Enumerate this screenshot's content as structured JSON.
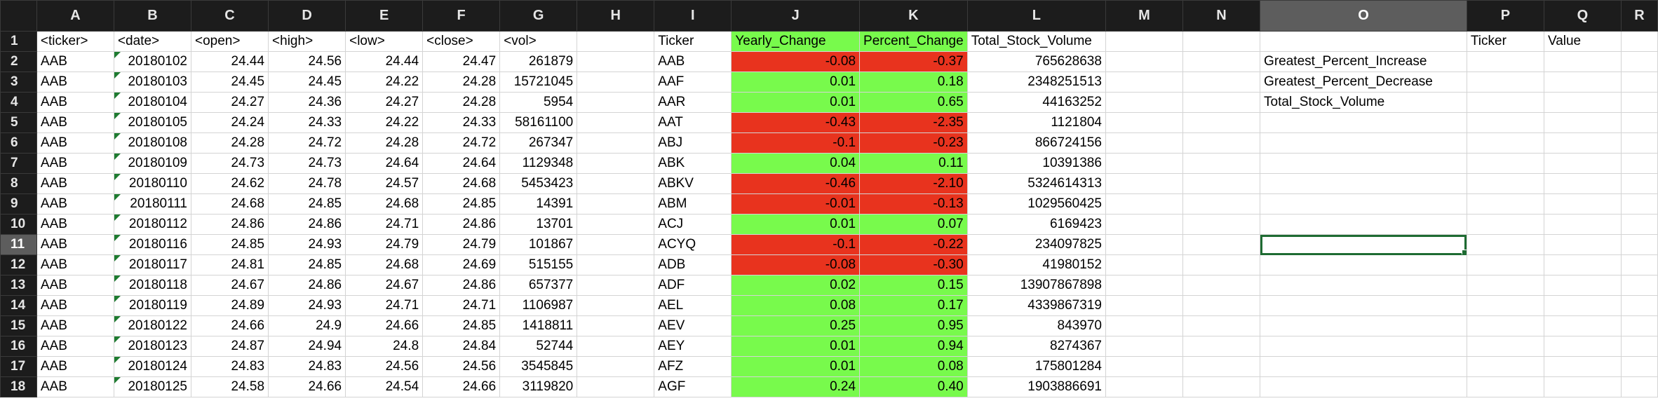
{
  "columns": [
    "A",
    "B",
    "C",
    "D",
    "E",
    "F",
    "G",
    "H",
    "I",
    "J",
    "K",
    "L",
    "M",
    "N",
    "O",
    "P",
    "Q",
    "R"
  ],
  "selected": {
    "column": "O",
    "row": "11"
  },
  "colors": {
    "positive": "#78fa4c",
    "negative": "#e8331e",
    "header_bg": "#1c1c1c"
  },
  "header_row": {
    "row": "1",
    "A": "<ticker>",
    "B": "<date>",
    "C": "<open>",
    "D": "<high>",
    "E": "<low>",
    "F": "<close>",
    "G": "<vol>",
    "I": "Ticker",
    "J": "Yearly_Change",
    "K": "Percent_Change",
    "L": "Total_Stock_Volume",
    "P": "Ticker",
    "Q": "Value"
  },
  "rows": [
    {
      "row": "2",
      "A": "AAB",
      "B": "20180102",
      "C": "24.44",
      "D": "24.56",
      "E": "24.44",
      "F": "24.47",
      "G": "261879",
      "I": "AAB",
      "J": "-0.08",
      "K": "-0.37",
      "L": "765628638",
      "O": "Greatest_Percent_Increase"
    },
    {
      "row": "3",
      "A": "AAB",
      "B": "20180103",
      "C": "24.45",
      "D": "24.45",
      "E": "24.22",
      "F": "24.28",
      "G": "15721045",
      "I": "AAF",
      "J": "0.01",
      "K": "0.18",
      "L": "2348251513",
      "O": "Greatest_Percent_Decrease"
    },
    {
      "row": "4",
      "A": "AAB",
      "B": "20180104",
      "C": "24.27",
      "D": "24.36",
      "E": "24.27",
      "F": "24.28",
      "G": "5954",
      "I": "AAR",
      "J": "0.01",
      "K": "0.65",
      "L": "44163252",
      "O": "Total_Stock_Volume"
    },
    {
      "row": "5",
      "A": "AAB",
      "B": "20180105",
      "C": "24.24",
      "D": "24.33",
      "E": "24.22",
      "F": "24.33",
      "G": "58161100",
      "I": "AAT",
      "J": "-0.43",
      "K": "-2.35",
      "L": "1121804",
      "O": ""
    },
    {
      "row": "6",
      "A": "AAB",
      "B": "20180108",
      "C": "24.28",
      "D": "24.72",
      "E": "24.28",
      "F": "24.72",
      "G": "267347",
      "I": "ABJ",
      "J": "-0.1",
      "K": "-0.23",
      "L": "866724156",
      "O": ""
    },
    {
      "row": "7",
      "A": "AAB",
      "B": "20180109",
      "C": "24.73",
      "D": "24.73",
      "E": "24.64",
      "F": "24.64",
      "G": "1129348",
      "I": "ABK",
      "J": "0.04",
      "K": "0.11",
      "L": "10391386",
      "O": ""
    },
    {
      "row": "8",
      "A": "AAB",
      "B": "20180110",
      "C": "24.62",
      "D": "24.78",
      "E": "24.57",
      "F": "24.68",
      "G": "5453423",
      "I": "ABKV",
      "J": "-0.46",
      "K": "-2.10",
      "L": "5324614313",
      "O": ""
    },
    {
      "row": "9",
      "A": "AAB",
      "B": "20180111",
      "C": "24.68",
      "D": "24.85",
      "E": "24.68",
      "F": "24.85",
      "G": "14391",
      "I": "ABM",
      "J": "-0.01",
      "K": "-0.13",
      "L": "1029560425",
      "O": ""
    },
    {
      "row": "10",
      "A": "AAB",
      "B": "20180112",
      "C": "24.86",
      "D": "24.86",
      "E": "24.71",
      "F": "24.86",
      "G": "13701",
      "I": "ACJ",
      "J": "0.01",
      "K": "0.07",
      "L": "6169423",
      "O": ""
    },
    {
      "row": "11",
      "A": "AAB",
      "B": "20180116",
      "C": "24.85",
      "D": "24.93",
      "E": "24.79",
      "F": "24.79",
      "G": "101867",
      "I": "ACYQ",
      "J": "-0.1",
      "K": "-0.22",
      "L": "234097825",
      "O": ""
    },
    {
      "row": "12",
      "A": "AAB",
      "B": "20180117",
      "C": "24.81",
      "D": "24.85",
      "E": "24.68",
      "F": "24.69",
      "G": "515155",
      "I": "ADB",
      "J": "-0.08",
      "K": "-0.30",
      "L": "41980152",
      "O": ""
    },
    {
      "row": "13",
      "A": "AAB",
      "B": "20180118",
      "C": "24.67",
      "D": "24.86",
      "E": "24.67",
      "F": "24.86",
      "G": "657377",
      "I": "ADF",
      "J": "0.02",
      "K": "0.15",
      "L": "13907867898",
      "O": ""
    },
    {
      "row": "14",
      "A": "AAB",
      "B": "20180119",
      "C": "24.89",
      "D": "24.93",
      "E": "24.71",
      "F": "24.71",
      "G": "1106987",
      "I": "AEL",
      "J": "0.08",
      "K": "0.17",
      "L": "4339867319",
      "O": ""
    },
    {
      "row": "15",
      "A": "AAB",
      "B": "20180122",
      "C": "24.66",
      "D": "24.9",
      "E": "24.66",
      "F": "24.85",
      "G": "1418811",
      "I": "AEV",
      "J": "0.25",
      "K": "0.95",
      "L": "843970",
      "O": ""
    },
    {
      "row": "16",
      "A": "AAB",
      "B": "20180123",
      "C": "24.87",
      "D": "24.94",
      "E": "24.8",
      "F": "24.84",
      "G": "52744",
      "I": "AEY",
      "J": "0.01",
      "K": "0.94",
      "L": "8274367",
      "O": ""
    },
    {
      "row": "17",
      "A": "AAB",
      "B": "20180124",
      "C": "24.83",
      "D": "24.83",
      "E": "24.56",
      "F": "24.56",
      "G": "3545845",
      "I": "AFZ",
      "J": "0.01",
      "K": "0.08",
      "L": "175801284",
      "O": ""
    },
    {
      "row": "18",
      "A": "AAB",
      "B": "20180125",
      "C": "24.58",
      "D": "24.66",
      "E": "24.54",
      "F": "24.66",
      "G": "3119820",
      "I": "AGF",
      "J": "0.24",
      "K": "0.40",
      "L": "1903886691",
      "O": ""
    }
  ]
}
